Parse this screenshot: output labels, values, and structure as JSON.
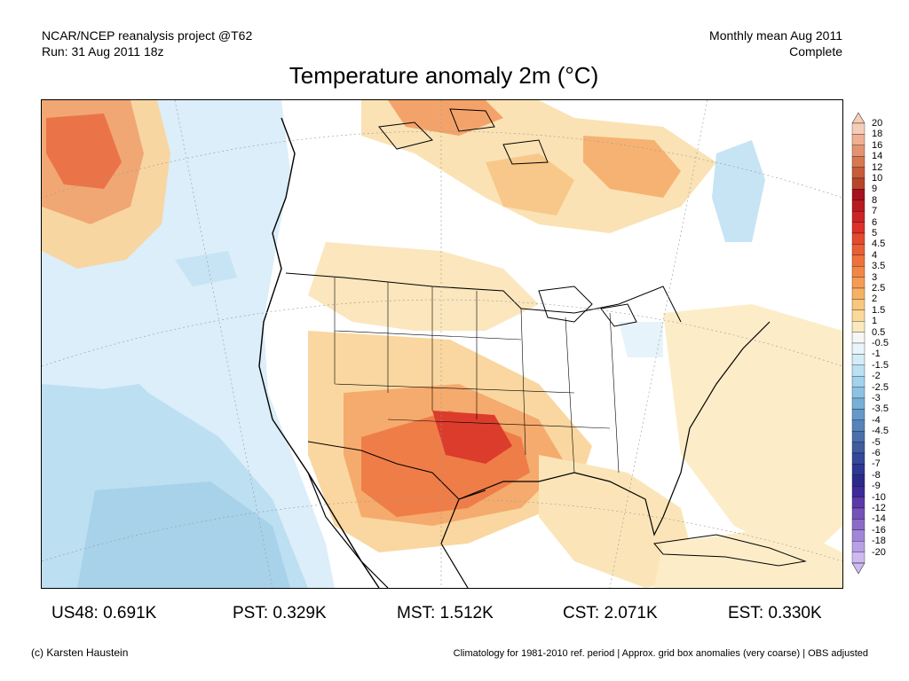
{
  "header": {
    "project": "NCAR/NCEP reanalysis project @T62",
    "run": "Run: 31 Aug 2011 18z",
    "period": "Monthly mean Aug 2011",
    "status": "Complete"
  },
  "title": "Temperature anomaly 2m (°C)",
  "colorbar": {
    "labels": [
      "20",
      "18",
      "16",
      "14",
      "12",
      "10",
      "9",
      "8",
      "7",
      "6",
      "5",
      "4.5",
      "4",
      "3.5",
      "3",
      "2.5",
      "2",
      "1.5",
      "1",
      "0.5",
      "-0.5",
      "-1",
      "-1.5",
      "-2",
      "-2.5",
      "-3",
      "-3.5",
      "-4",
      "-4.5",
      "-5",
      "-6",
      "-7",
      "-8",
      "-9",
      "-10",
      "-12",
      "-14",
      "-16",
      "-18",
      "-20"
    ],
    "colors": [
      "#f6cdb8",
      "#f0b094",
      "#e39372",
      "#d67852",
      "#c75c3a",
      "#b8452a",
      "#a6131c",
      "#b81a1e",
      "#cc2424",
      "#dc3028",
      "#e44a30",
      "#ea5e36",
      "#ee723c",
      "#f18746",
      "#f49c55",
      "#f6b165",
      "#f8c67d",
      "#fad999",
      "#fbe9bd",
      "#f6f6f6",
      "#e9f4fb",
      "#d4ecf8",
      "#bbe0f3",
      "#a3d2ec",
      "#8dc2e2",
      "#78afd6",
      "#6699c9",
      "#5583ba",
      "#4a70ac",
      "#3f5c9c",
      "#35489a",
      "#2e3894",
      "#2b2a8a",
      "#3e2a98",
      "#5b3aa8",
      "#7452b8",
      "#8b6bc8",
      "#a285d8",
      "#b8a0e6",
      "#ccbaf0"
    ]
  },
  "stats": [
    {
      "label": "US48: 0.691K"
    },
    {
      "label": "PST: 0.329K"
    },
    {
      "label": "MST: 1.512K"
    },
    {
      "label": "CST: 2.071K"
    },
    {
      "label": "EST: 0.330K"
    }
  ],
  "footer": {
    "credit": "(c) Karsten Haustein",
    "note": "Climatology for 1981-2010 ref. period | Approx. grid box anomalies (very coarse) | OBS adjusted"
  }
}
